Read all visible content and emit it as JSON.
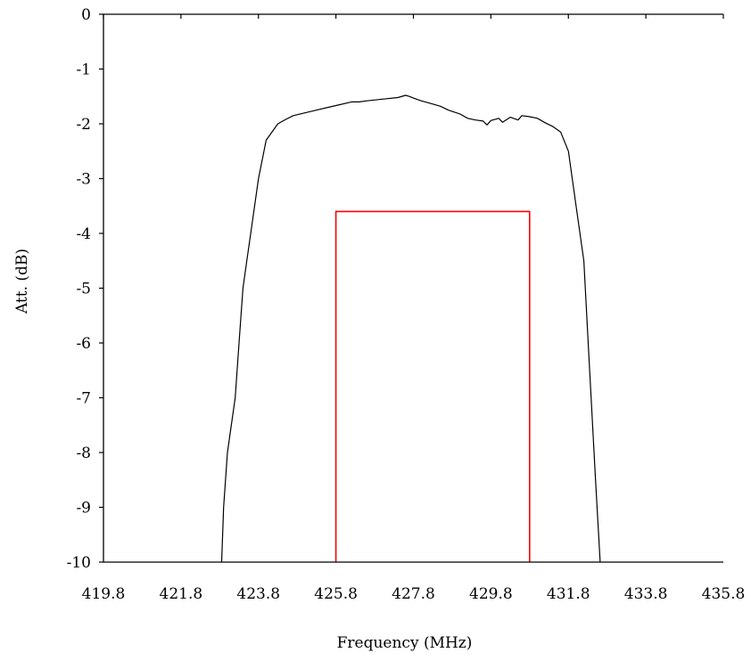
{
  "chart_data": {
    "type": "line",
    "title": "",
    "xlabel": "Frequency (MHz)",
    "ylabel": "Att. (dB)",
    "xlim": [
      419.8,
      435.8
    ],
    "ylim": [
      -10,
      0
    ],
    "x_ticks": [
      "419.8",
      "421.8",
      "423.8",
      "425.8",
      "427.8",
      "429.8",
      "431.8",
      "433.8",
      "435.8"
    ],
    "y_ticks": [
      "0",
      "-1",
      "-2",
      "-3",
      "-4",
      "-5",
      "-6",
      "-7",
      "-8",
      "-9",
      "-10"
    ],
    "grid": false,
    "legend": "none",
    "series": [
      {
        "color": "#000000",
        "x": [
          422.85,
          422.9,
          423.0,
          423.2,
          423.3,
          423.4,
          423.5,
          423.6,
          423.8,
          424.0,
          424.3,
          424.5,
          424.7,
          425.0,
          425.3,
          425.6,
          425.9,
          426.2,
          426.4,
          426.6,
          427.0,
          427.4,
          427.6,
          427.7,
          427.8,
          428.0,
          428.2,
          428.5,
          428.7,
          429.0,
          429.2,
          429.4,
          429.6,
          429.7,
          429.8,
          430.0,
          430.1,
          430.3,
          430.5,
          430.6,
          430.8,
          431.0,
          431.2,
          431.4,
          431.6,
          431.8,
          432.0,
          432.2,
          432.35,
          432.5,
          432.62
        ],
        "y": [
          -10.0,
          -9.0,
          -8.0,
          -7.0,
          -6.0,
          -5.0,
          -4.5,
          -4.0,
          -3.0,
          -2.3,
          -2.0,
          -1.92,
          -1.85,
          -1.8,
          -1.75,
          -1.7,
          -1.65,
          -1.6,
          -1.6,
          -1.58,
          -1.55,
          -1.52,
          -1.48,
          -1.5,
          -1.53,
          -1.58,
          -1.62,
          -1.68,
          -1.75,
          -1.82,
          -1.9,
          -1.93,
          -1.95,
          -2.02,
          -1.94,
          -1.9,
          -1.97,
          -1.88,
          -1.93,
          -1.85,
          -1.87,
          -1.9,
          -1.98,
          -2.05,
          -2.15,
          -2.5,
          -3.5,
          -4.5,
          -6.5,
          -8.5,
          -10.0
        ]
      },
      {
        "color": "#ff0000",
        "x": [
          425.8,
          425.8,
          430.8,
          430.8
        ],
        "y": [
          -10.0,
          -3.6,
          -3.6,
          -10.0
        ]
      }
    ]
  }
}
